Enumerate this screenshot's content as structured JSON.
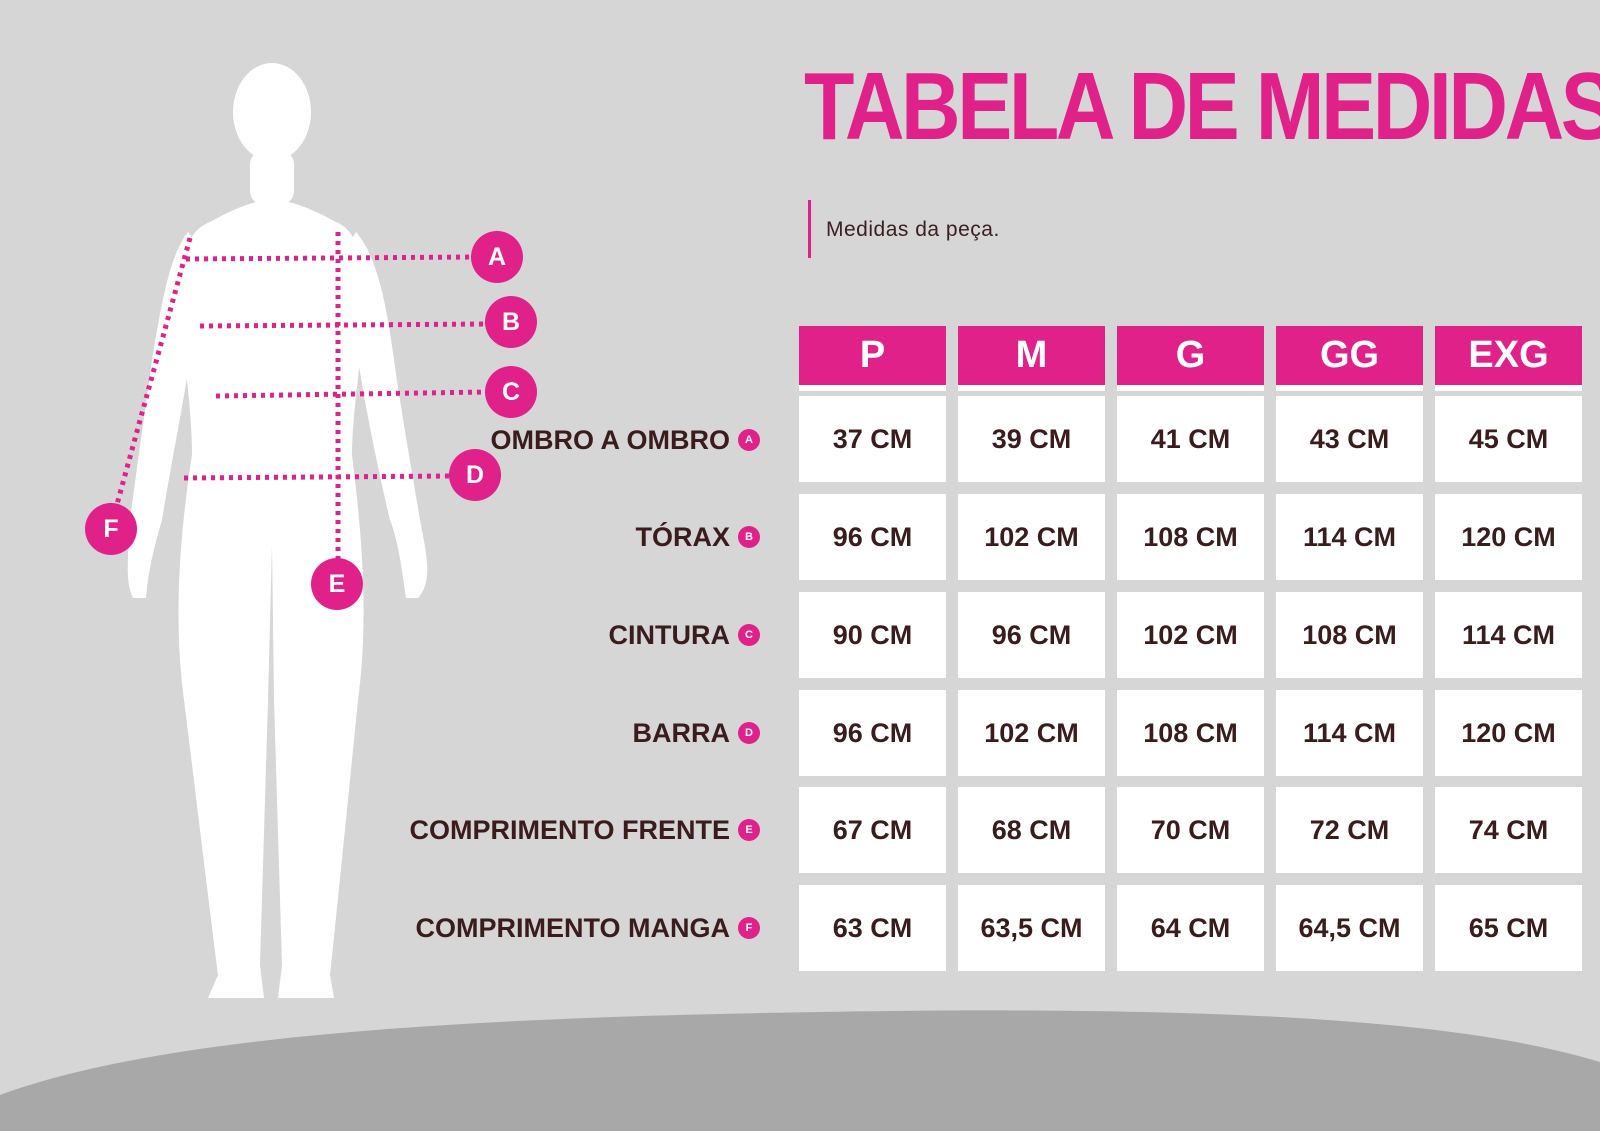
{
  "header": {
    "title": "TABELA DE MEDIDAS",
    "subtitle": "Medidas da peça."
  },
  "colors": {
    "accent": "#e0218a",
    "text": "#3a1c1c",
    "background": "#d6d6d6",
    "ground": "#a8a8a8"
  },
  "figure": {
    "markers": [
      "A",
      "B",
      "C",
      "D",
      "E",
      "F"
    ]
  },
  "table": {
    "sizes": [
      "P",
      "M",
      "G",
      "GG",
      "EXG"
    ],
    "rows": [
      {
        "label": "OMBRO A OMBRO",
        "badge": "A",
        "values": [
          "37 CM",
          "39 CM",
          "41 CM",
          "43 CM",
          "45 CM"
        ]
      },
      {
        "label": "TÓRAX",
        "badge": "B",
        "values": [
          "96 CM",
          "102 CM",
          "108 CM",
          "114 CM",
          "120 CM"
        ]
      },
      {
        "label": "CINTURA",
        "badge": "C",
        "values": [
          "90 CM",
          "96 CM",
          "102 CM",
          "108 CM",
          "114 CM"
        ]
      },
      {
        "label": "BARRA",
        "badge": "D",
        "values": [
          "96 CM",
          "102 CM",
          "108 CM",
          "114 CM",
          "120 CM"
        ]
      },
      {
        "label": "COMPRIMENTO FRENTE",
        "badge": "E",
        "values": [
          "67 CM",
          "68 CM",
          "70 CM",
          "72 CM",
          "74 CM"
        ]
      },
      {
        "label": "COMPRIMENTO MANGA",
        "badge": "F",
        "values": [
          "63 CM",
          "63,5 CM",
          "64 CM",
          "64,5 CM",
          "65 CM"
        ]
      }
    ]
  }
}
